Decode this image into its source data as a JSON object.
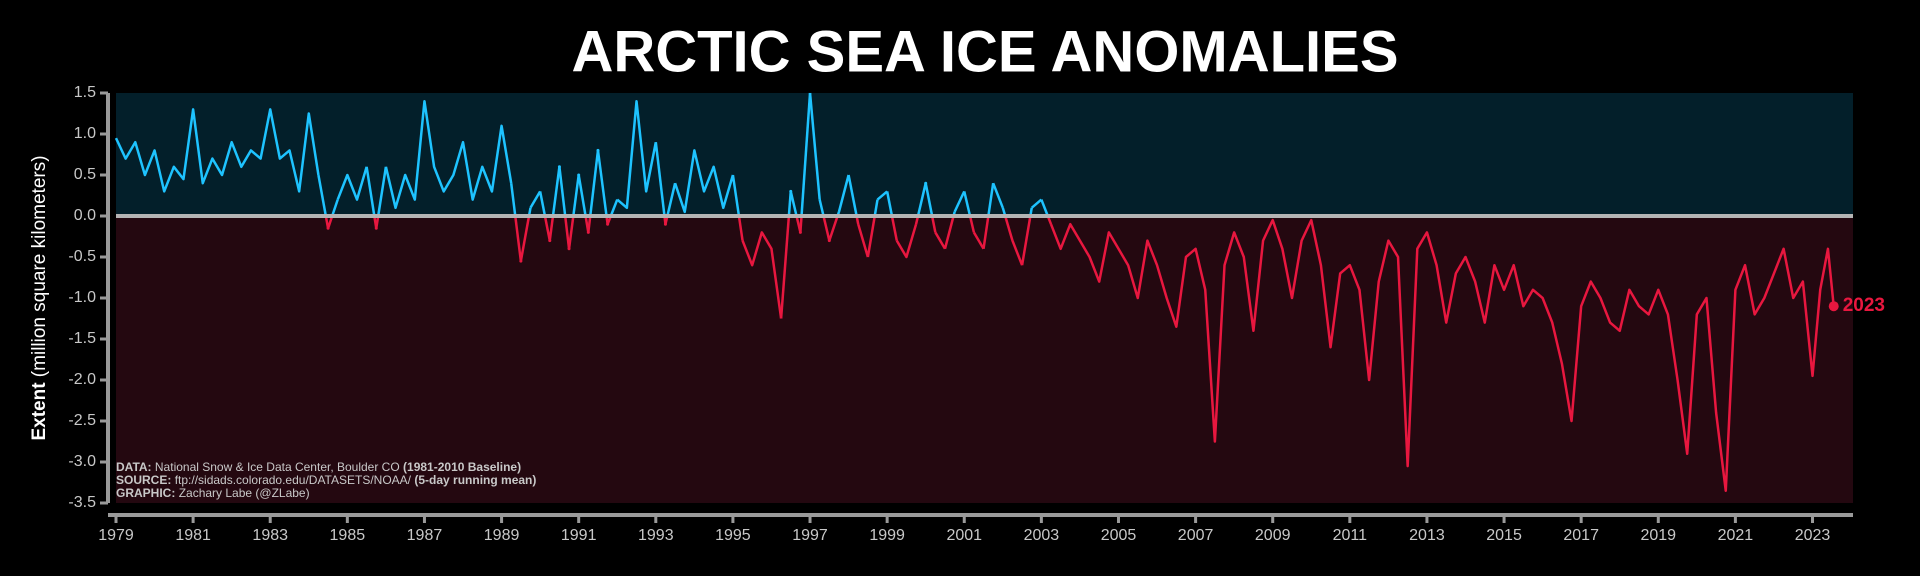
{
  "chart_data": {
    "type": "line",
    "title": "ARCTIC SEA ICE ANOMALIES",
    "y_label_bold": "Extent",
    "y_label": "(million square kilometers)",
    "end_label": "2023",
    "annotations": [
      {
        "label": "DATA:",
        "text": "National Snow & Ice Data Center, Boulder CO",
        "note": "(1981-2010 Baseline)"
      },
      {
        "label": "SOURCE:",
        "text": "ftp://sidads.colorado.edu/DATASETS/NOAA/",
        "note": "(5-day running mean)"
      },
      {
        "label": "GRAPHIC:",
        "text": "Zachary Labe (@ZLabe)"
      }
    ],
    "positive_color": "#1ec3ff",
    "negative_color": "#e8173f",
    "positive_background": "#031f2a",
    "negative_background": "#240810",
    "xlim": [
      1979,
      2024.05
    ],
    "xticks": [
      1979,
      1981,
      1983,
      1985,
      1987,
      1989,
      1991,
      1993,
      1995,
      1997,
      1999,
      2001,
      2003,
      2005,
      2007,
      2009,
      2011,
      2013,
      2015,
      2017,
      2019,
      2021,
      2023
    ],
    "ylim": [
      -3.5,
      1.5
    ],
    "yticks": [
      1.5,
      {
        "value": 1,
        "label": "1.0"
      },
      0.5,
      {
        "value": 0,
        "label": "0.0"
      },
      -0.5,
      {
        "value": -1,
        "label": "-1.0"
      },
      -1.5,
      {
        "value": -2,
        "label": "-2.0"
      },
      -2.5,
      {
        "value": -3,
        "label": "-3.0"
      },
      -3.5
    ],
    "x": [
      1979.0,
      1979.25,
      1979.5,
      1979.75,
      1980.0,
      1980.25,
      1980.5,
      1980.75,
      1981.0,
      1981.25,
      1981.5,
      1981.75,
      1982.0,
      1982.25,
      1982.5,
      1982.75,
      1983.0,
      1983.25,
      1983.5,
      1983.75,
      1984.0,
      1984.25,
      1984.5,
      1984.75,
      1985.0,
      1985.25,
      1985.5,
      1985.75,
      1986.0,
      1986.25,
      1986.5,
      1986.75,
      1987.0,
      1987.25,
      1987.5,
      1987.75,
      1988.0,
      1988.25,
      1988.5,
      1988.75,
      1989.0,
      1989.25,
      1989.5,
      1989.75,
      1990.0,
      1990.25,
      1990.5,
      1990.75,
      1991.0,
      1991.25,
      1991.5,
      1991.75,
      1992.0,
      1992.25,
      1992.5,
      1992.75,
      1993.0,
      1993.25,
      1993.5,
      1993.75,
      1994.0,
      1994.25,
      1994.5,
      1994.75,
      1995.0,
      1995.25,
      1995.5,
      1995.75,
      1996.0,
      1996.25,
      1996.5,
      1996.75,
      1997.0,
      1997.25,
      1997.5,
      1997.75,
      1998.0,
      1998.25,
      1998.5,
      1998.75,
      1999.0,
      1999.25,
      1999.5,
      1999.75,
      2000.0,
      2000.25,
      2000.5,
      2000.75,
      2001.0,
      2001.25,
      2001.5,
      2001.75,
      2002.0,
      2002.25,
      2002.5,
      2002.75,
      2003.0,
      2003.25,
      2003.5,
      2003.75,
      2004.0,
      2004.25,
      2004.5,
      2004.75,
      2005.0,
      2005.25,
      2005.5,
      2005.75,
      2006.0,
      2006.25,
      2006.5,
      2006.75,
      2007.0,
      2007.25,
      2007.5,
      2007.75,
      2008.0,
      2008.25,
      2008.5,
      2008.75,
      2009.0,
      2009.25,
      2009.5,
      2009.75,
      2010.0,
      2010.25,
      2010.5,
      2010.75,
      2011.0,
      2011.25,
      2011.5,
      2011.75,
      2012.0,
      2012.25,
      2012.5,
      2012.75,
      2013.0,
      2013.25,
      2013.5,
      2013.75,
      2014.0,
      2014.25,
      2014.5,
      2014.75,
      2015.0,
      2015.25,
      2015.5,
      2015.75,
      2016.0,
      2016.25,
      2016.5,
      2016.75,
      2017.0,
      2017.25,
      2017.5,
      2017.75,
      2018.0,
      2018.25,
      2018.5,
      2018.75,
      2019.0,
      2019.25,
      2019.5,
      2019.75,
      2020.0,
      2020.25,
      2020.5,
      2020.75,
      2021.0,
      2021.25,
      2021.5,
      2021.75,
      2022.0,
      2022.25,
      2022.5,
      2022.75,
      2023.0,
      2023.2,
      2023.4,
      2023.55
    ],
    "values": [
      0.95,
      0.7,
      0.9,
      0.5,
      0.8,
      0.3,
      0.6,
      0.45,
      1.3,
      0.4,
      0.7,
      0.5,
      0.9,
      0.6,
      0.8,
      0.7,
      1.3,
      0.7,
      0.8,
      0.3,
      1.25,
      0.5,
      -0.15,
      0.2,
      0.5,
      0.2,
      0.6,
      -0.15,
      0.6,
      0.1,
      0.5,
      0.2,
      1.4,
      0.6,
      0.3,
      0.5,
      0.9,
      0.2,
      0.6,
      0.3,
      1.1,
      0.4,
      -0.55,
      0.1,
      0.3,
      -0.3,
      0.6,
      -0.4,
      0.5,
      -0.2,
      0.8,
      -0.1,
      0.2,
      0.1,
      1.4,
      0.3,
      0.9,
      -0.1,
      0.4,
      0.05,
      0.8,
      0.3,
      0.6,
      0.1,
      0.5,
      -0.3,
      -0.6,
      -0.2,
      -0.4,
      -1.25,
      0.3,
      -0.2,
      1.5,
      0.2,
      -0.3,
      0.05,
      0.5,
      -0.1,
      -0.5,
      0.2,
      0.3,
      -0.3,
      -0.5,
      -0.1,
      0.4,
      -0.2,
      -0.4,
      0.05,
      0.3,
      -0.2,
      -0.4,
      0.4,
      0.1,
      -0.3,
      -0.6,
      0.1,
      0.2,
      -0.1,
      -0.4,
      -0.1,
      -0.3,
      -0.5,
      -0.8,
      -0.2,
      -0.4,
      -0.6,
      -1.0,
      -0.3,
      -0.6,
      -1.0,
      -1.35,
      -0.5,
      -0.4,
      -0.9,
      -2.75,
      -0.6,
      -0.2,
      -0.5,
      -1.4,
      -0.3,
      -0.05,
      -0.4,
      -1.0,
      -0.3,
      -0.05,
      -0.6,
      -1.6,
      -0.7,
      -0.6,
      -0.9,
      -2.0,
      -0.8,
      -0.3,
      -0.5,
      -3.05,
      -0.4,
      -0.2,
      -0.6,
      -1.3,
      -0.7,
      -0.5,
      -0.8,
      -1.3,
      -0.6,
      -0.9,
      -0.6,
      -1.1,
      -0.9,
      -1.0,
      -1.3,
      -1.8,
      -2.5,
      -1.1,
      -0.8,
      -1.0,
      -1.3,
      -1.4,
      -0.9,
      -1.1,
      -1.2,
      -0.9,
      -1.2,
      -2.0,
      -2.9,
      -1.2,
      -1.0,
      -2.4,
      -3.35,
      -0.9,
      -0.6,
      -1.2,
      -1.0,
      -0.7,
      -0.4,
      -1.0,
      -0.8,
      -1.95,
      -0.9,
      -0.4,
      -1.1
    ]
  }
}
